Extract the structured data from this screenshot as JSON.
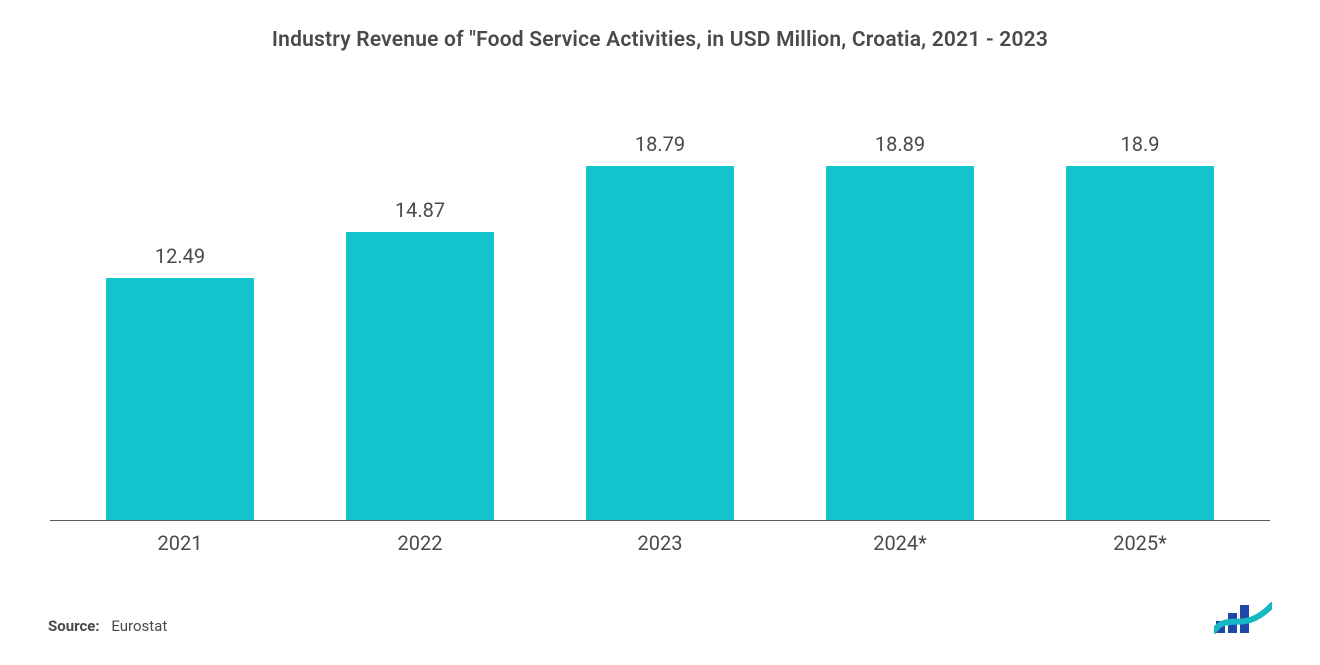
{
  "chart": {
    "type": "bar",
    "title": "Industry Revenue of  \"Food Service Activities, in USD Million, Croatia, 2021 - 2023",
    "title_fontsize": 21,
    "title_color": "#4a4a4a",
    "categories": [
      "2021",
      "2022",
      "2023",
      "2024*",
      "2025*"
    ],
    "values": [
      12.49,
      14.87,
      18.79,
      18.89,
      18.9
    ],
    "value_labels": [
      "12.49",
      "14.87",
      "18.79",
      "18.89",
      "18.9"
    ],
    "bar_color": "#13c4cc",
    "bar_width_pct": 62,
    "y_max": 20,
    "axis_line_color": "#5a5a5a",
    "background_color": "#ffffff",
    "value_label_fontsize": 20,
    "value_label_color": "#4a4a4a",
    "xtick_fontsize": 20,
    "xtick_color": "#4a4a4a"
  },
  "source": {
    "label": "Source:",
    "value": "Eurostat",
    "fontsize": 15,
    "color": "#4a4a4a"
  },
  "logo": {
    "name": "mordor-intelligence-logo",
    "bar_color": "#2048a8",
    "wave_color": "#16b8c4"
  }
}
